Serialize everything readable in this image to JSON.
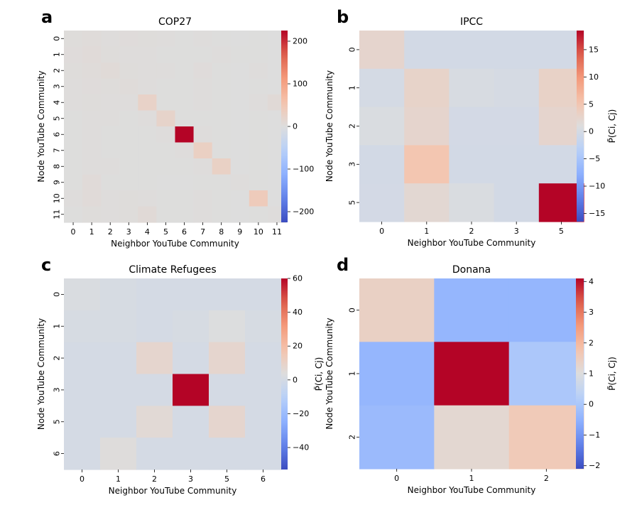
{
  "panels": [
    {
      "label": "a",
      "title": "COP27",
      "xlabel": "Neighbor YouTube Community",
      "ylabel": "Node YouTube Community",
      "cbar_label": "",
      "cbar_ticks": [
        "200",
        "100",
        "0",
        "−100",
        "−200"
      ]
    },
    {
      "label": "b",
      "title": "IPCC",
      "xlabel": "Neighbor YouTube Community",
      "ylabel": "Node YouTube Community",
      "cbar_label": "P̃(Ci, Cj)",
      "cbar_ticks": [
        "15",
        "10",
        "5",
        "0",
        "−5",
        "−10",
        "−15"
      ]
    },
    {
      "label": "c",
      "title": "Climate Refugees",
      "xlabel": "Neighbor YouTube Community",
      "ylabel": "Node YouTube Community",
      "cbar_label": "P̃(Ci, Cj)",
      "cbar_ticks": [
        "60",
        "40",
        "20",
        "0",
        "−20",
        "−40"
      ]
    },
    {
      "label": "d",
      "title": "Donana",
      "xlabel": "Neighbor YouTube Community",
      "ylabel": "Node YouTube Community",
      "cbar_label": "P̃(Ci, Cj)",
      "cbar_ticks": [
        "4",
        "3",
        "2",
        "1",
        "0",
        "−1",
        "−2"
      ]
    }
  ],
  "chart_data": [
    {
      "type": "heatmap",
      "title": "COP27",
      "xlabel": "Neighbor YouTube Community",
      "ylabel": "Node YouTube Community",
      "x_categories": [
        "0",
        "1",
        "2",
        "3",
        "4",
        "5",
        "6",
        "7",
        "8",
        "9",
        "10",
        "11"
      ],
      "y_categories": [
        "0",
        "1",
        "2",
        "3",
        "4",
        "5",
        "6",
        "7",
        "8",
        "9",
        "10",
        "11"
      ],
      "vmin": -225,
      "vmax": 225,
      "cbar_ticks": [
        200,
        100,
        0,
        -100,
        -200
      ],
      "values": [
        [
          3,
          5,
          2,
          4,
          3,
          2,
          1,
          2,
          1,
          0,
          1,
          0
        ],
        [
          4,
          6,
          3,
          2,
          2,
          1,
          1,
          1,
          2,
          1,
          1,
          0
        ],
        [
          3,
          5,
          7,
          3,
          2,
          2,
          1,
          4,
          1,
          0,
          2,
          0
        ],
        [
          2,
          4,
          3,
          5,
          2,
          1,
          1,
          2,
          1,
          0,
          1,
          0
        ],
        [
          2,
          3,
          2,
          2,
          25,
          1,
          1,
          2,
          1,
          0,
          2,
          8
        ],
        [
          1,
          2,
          2,
          1,
          2,
          22,
          1,
          1,
          1,
          0,
          1,
          0
        ],
        [
          1,
          2,
          1,
          1,
          1,
          2,
          225,
          2,
          1,
          0,
          1,
          0
        ],
        [
          1,
          2,
          1,
          1,
          1,
          1,
          2,
          30,
          1,
          0,
          1,
          0
        ],
        [
          1,
          2,
          2,
          1,
          1,
          1,
          1,
          2,
          28,
          0,
          1,
          0
        ],
        [
          1,
          6,
          1,
          1,
          1,
          0,
          0,
          1,
          1,
          2,
          1,
          0
        ],
        [
          2,
          6,
          2,
          3,
          2,
          1,
          1,
          2,
          1,
          0,
          40,
          0
        ],
        [
          1,
          3,
          2,
          3,
          8,
          1,
          1,
          2,
          1,
          0,
          1,
          2
        ]
      ]
    },
    {
      "type": "heatmap",
      "title": "IPCC",
      "xlabel": "Neighbor YouTube Community",
      "ylabel": "Node YouTube Community",
      "cbar_label": "P̃(Ci, Cj)",
      "x_categories": [
        "0",
        "1",
        "2",
        "3",
        "5"
      ],
      "y_categories": [
        "0",
        "1",
        "2",
        "3",
        "5"
      ],
      "vmin": -16.5,
      "vmax": 18.5,
      "cbar_ticks": [
        15,
        10,
        5,
        0,
        -5,
        -10,
        -15
      ],
      "values": [
        [
          2.5,
          -0.3,
          -0.3,
          -0.3,
          -0.3
        ],
        [
          -0.1,
          2.8,
          0.3,
          0.1,
          3.0
        ],
        [
          0.5,
          2.5,
          -0.2,
          -0.2,
          2.5
        ],
        [
          -0.3,
          5.0,
          -0.3,
          -0.3,
          -0.3
        ],
        [
          -0.2,
          2.0,
          0.5,
          -0.3,
          18.5
        ]
      ]
    },
    {
      "type": "heatmap",
      "title": "Climate Refugees",
      "xlabel": "Neighbor YouTube Community",
      "ylabel": "Node YouTube Community",
      "cbar_label": "P̃(Ci, Cj)",
      "x_categories": [
        "0",
        "1",
        "2",
        "3",
        "5",
        "6"
      ],
      "y_categories": [
        "0",
        "1",
        "2",
        "3",
        "5",
        "6"
      ],
      "vmin": -53,
      "vmax": 60,
      "cbar_ticks": [
        60,
        40,
        20,
        0,
        -20,
        -40
      ],
      "values": [
        [
          2,
          1,
          0,
          0,
          0,
          0
        ],
        [
          1,
          1,
          0,
          1,
          3,
          1
        ],
        [
          0,
          0,
          8,
          0,
          8,
          0
        ],
        [
          0,
          0,
          0,
          60,
          0,
          0
        ],
        [
          0,
          0,
          6,
          0,
          8,
          0
        ],
        [
          0,
          4,
          0,
          0,
          0,
          0
        ]
      ]
    },
    {
      "type": "heatmap",
      "title": "Donana",
      "xlabel": "Neighbor YouTube Community",
      "ylabel": "Node YouTube Community",
      "cbar_label": "P̃(Ci, Cj)",
      "x_categories": [
        "0",
        "1",
        "2"
      ],
      "y_categories": [
        "0",
        "1",
        "2"
      ],
      "vmin": -2.1,
      "vmax": 4.1,
      "cbar_ticks": [
        4,
        3,
        2,
        1,
        0,
        -1,
        -2
      ],
      "values": [
        [
          1.4,
          -0.4,
          -0.4
        ],
        [
          -0.4,
          4.1,
          0.0
        ],
        [
          -0.3,
          1.2,
          1.6
        ]
      ]
    }
  ]
}
